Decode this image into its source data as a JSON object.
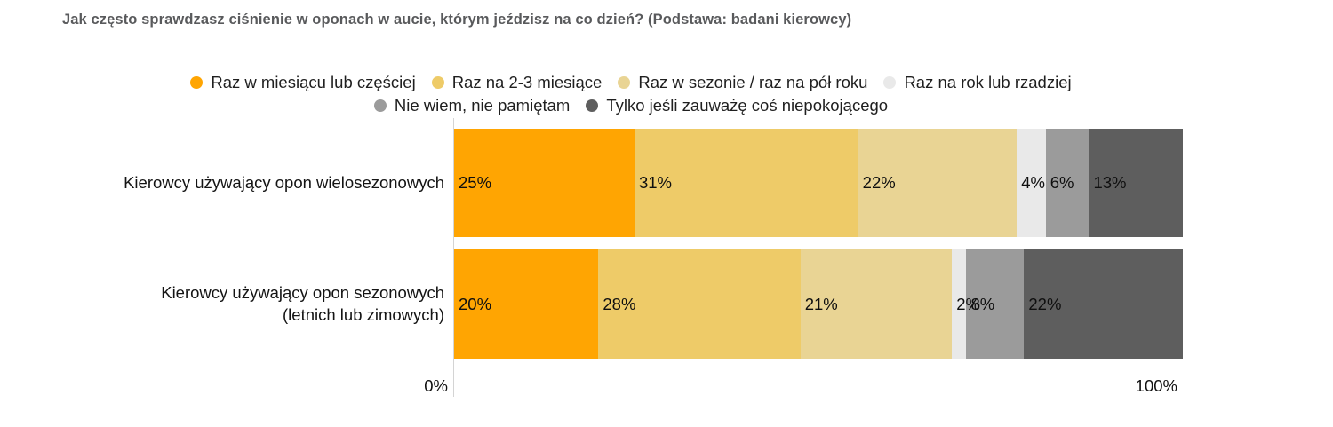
{
  "title": "Jak często sprawdzasz ciśnienie w oponach w aucie, którym jeździsz na co dzień? (Podstawa: badani kierowcy)",
  "chart_data": {
    "type": "bar",
    "stacked": true,
    "orientation": "horizontal",
    "title": "Jak często sprawdzasz ciśnienie w oponach w aucie, którym jeździsz na co dzień? (Podstawa: badani kierowcy)",
    "categories": [
      "Kierowcy używający opon wielosezonowych",
      "Kierowcy używający opon sezonowych\n(letnich lub zimowych)"
    ],
    "series": [
      {
        "name": "Raz w miesiącu lub częściej",
        "color": "#FFA502",
        "values": [
          25,
          20
        ]
      },
      {
        "name": "Raz na 2-3 miesiące",
        "color": "#EECB68",
        "values": [
          31,
          28
        ]
      },
      {
        "name": "Raz w sezonie / raz na pół roku",
        "color": "#E9D494",
        "values": [
          22,
          21
        ]
      },
      {
        "name": "Raz na rok lub rzadziej",
        "color": "#E9E9E9",
        "values": [
          4,
          2
        ]
      },
      {
        "name": "Nie wiem, nie pamiętam",
        "color": "#9B9B9B",
        "values": [
          6,
          8
        ]
      },
      {
        "name": "Tylko jeśli zauważę coś niepokojącego",
        "color": "#5E5E5E",
        "values": [
          13,
          22
        ]
      }
    ],
    "value_suffix": "%",
    "xlim": [
      0,
      100
    ],
    "axis_labels": {
      "min": "0%",
      "max": "100%"
    },
    "legend_position": "top",
    "legend_rows": [
      [
        0,
        1,
        2,
        3
      ],
      [
        4,
        5
      ]
    ],
    "grid": false
  }
}
